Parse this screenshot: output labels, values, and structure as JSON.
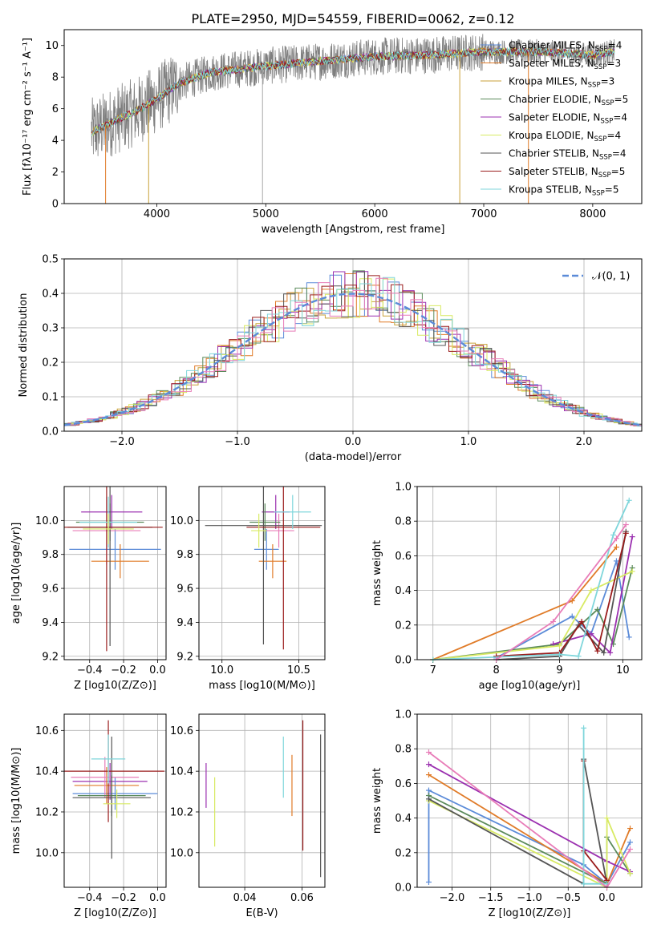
{
  "figure": {
    "title": "PLATE=2950, MJD=54559, FIBERID=0062, z=0.12"
  },
  "colors": {
    "blue": "#5b8bd8",
    "orange": "#e07b28",
    "gold": "#c9a23a",
    "green": "#5a8a5a",
    "purple": "#9b30b0",
    "yellowgreen": "#d8ea63",
    "darkgray": "#555555",
    "darkred": "#9a1c1c",
    "cyan": "#7fd6db",
    "pink": "#e87cb8",
    "olive": "#9aa23a",
    "gray": "#7f7f7f"
  },
  "chart_data": [
    {
      "type": "line",
      "xlabel": "wavelength [Angstrom, rest frame]",
      "ylabel": "Flux [fλ10⁻¹⁷ erg cm⁻² s⁻¹ A⁻¹]",
      "xlim": [
        3150,
        8450
      ],
      "ylim": [
        0,
        11
      ],
      "xticks": [
        4000,
        5000,
        6000,
        7000,
        8000
      ],
      "yticks": [
        0,
        2,
        4,
        6,
        8,
        10
      ],
      "grid": false,
      "legend_position": "top-right",
      "continuum": {
        "x": [
          3400,
          3600,
          3800,
          4000,
          4200,
          4500,
          5000,
          5500,
          6000,
          6500,
          7000,
          7500,
          8000,
          8200
        ],
        "y": [
          4.5,
          5.2,
          5.8,
          6.6,
          7.6,
          8.3,
          8.7,
          9.0,
          9.3,
          9.4,
          9.6,
          9.6,
          9.4,
          9.6
        ]
      },
      "series": [
        {
          "name": "Chabrier MILES, N_SSP=4",
          "color": "#5b8bd8"
        },
        {
          "name": "Salpeter MILES, N_SSP=3",
          "color": "#e07b28"
        },
        {
          "name": "Kroupa MILES, N_SSP=3",
          "color": "#c9a23a"
        },
        {
          "name": "Chabrier ELODIE, N_SSP=5",
          "color": "#5a8a5a"
        },
        {
          "name": "Salpeter ELODIE, N_SSP=4",
          "color": "#9b30b0"
        },
        {
          "name": "Kroupa ELODIE, N_SSP=4",
          "color": "#d8ea63"
        },
        {
          "name": "Chabrier STELIB, N_SSP=4",
          "color": "#555555"
        },
        {
          "name": "Salpeter STELIB, N_SSP=5",
          "color": "#9a1c1c"
        },
        {
          "name": "Kroupa STELIB, N_SSP=5",
          "color": "#7fd6db"
        }
      ],
      "legend": [
        {
          "name": "Chabrier MILES, N",
          "sub": "SSP",
          "suffix": "=4",
          "color": "#5b8bd8"
        },
        {
          "name": "Salpeter MILES, N",
          "sub": "SSP",
          "suffix": "=3",
          "color": "#e07b28"
        },
        {
          "name": "Kroupa MILES, N",
          "sub": "SSP",
          "suffix": "=3",
          "color": "#c9a23a"
        },
        {
          "name": "Chabrier ELODIE, N",
          "sub": "SSP",
          "suffix": "=5",
          "color": "#5a8a5a"
        },
        {
          "name": "Salpeter ELODIE, N",
          "sub": "SSP",
          "suffix": "=4",
          "color": "#9b30b0"
        },
        {
          "name": "Kroupa ELODIE, N",
          "sub": "SSP",
          "suffix": "=4",
          "color": "#d8ea63"
        },
        {
          "name": "Chabrier STELIB, N",
          "sub": "SSP",
          "suffix": "=4",
          "color": "#555555"
        },
        {
          "name": "Salpeter STELIB, N",
          "sub": "SSP",
          "suffix": "=5",
          "color": "#9a1c1c"
        },
        {
          "name": "Kroupa STELIB, N",
          "sub": "SSP",
          "suffix": "=5",
          "color": "#7fd6db"
        }
      ]
    },
    {
      "type": "histogram",
      "xlabel": "(data-model)/error",
      "ylabel": "Normed distribution",
      "xlim": [
        -2.5,
        2.5
      ],
      "ylim": [
        0,
        0.5
      ],
      "xticks": [
        -2,
        -1,
        0,
        1,
        2
      ],
      "yticks": [
        0.0,
        0.1,
        0.2,
        0.3,
        0.4,
        0.5
      ],
      "grid": true,
      "legend_position": "top-right",
      "gaussian_label": "𝒩(0, 1)",
      "gaussian_color": "#5b8bd8",
      "bin_width": 0.1
    },
    {
      "type": "scatter",
      "xlabel": "Z [log10(Z/Z⊙)]",
      "ylabel": "age  [log10(age/yr)]",
      "xlim": [
        -0.55,
        0.05
      ],
      "ylim": [
        9.18,
        10.2
      ],
      "xticks": [
        -0.4,
        -0.2,
        0.0
      ],
      "yticks": [
        9.2,
        9.4,
        9.6,
        9.8,
        10.0
      ],
      "grid": true,
      "points": [
        {
          "color": "#9b30b0",
          "x": -0.27,
          "y": 10.05,
          "xerr": 0.18,
          "yerr": 0.1
        },
        {
          "color": "#5b8bd8",
          "x": -0.25,
          "y": 9.83,
          "xerr": 0.27,
          "yerr": 0.12
        },
        {
          "color": "#e07b28",
          "x": -0.22,
          "y": 9.76,
          "xerr": 0.17,
          "yerr": 0.1
        },
        {
          "color": "#e87cb8",
          "x": -0.3,
          "y": 9.94,
          "xerr": 0.2,
          "yerr": 0.2
        },
        {
          "color": "#5a8a5a",
          "x": -0.28,
          "y": 9.99,
          "xerr": 0.2,
          "yerr": 0.11
        },
        {
          "color": "#555555",
          "x": -0.28,
          "y": 9.96,
          "xerr": 0.25,
          "yerr": 0.7
        },
        {
          "color": "#9a1c1c",
          "x": -0.3,
          "y": 9.96,
          "xerr": 0.33,
          "yerr": 0.73
        },
        {
          "color": "#7fd6db",
          "x": -0.29,
          "y": 9.99,
          "xerr": 0.17,
          "yerr": 0.15
        },
        {
          "color": "#d8ea63",
          "x": -0.29,
          "y": 9.95,
          "xerr": 0.15,
          "yerr": 0.09
        }
      ]
    },
    {
      "type": "scatter",
      "xlabel": "mass [log10(M/M⊙)]",
      "ylabel": "",
      "xlim": [
        9.85,
        10.67
      ],
      "ylim": [
        9.18,
        10.2
      ],
      "xticks": [
        10.0,
        10.5
      ],
      "yticks": [
        9.2,
        9.4,
        9.6,
        9.8,
        10.0
      ],
      "grid": true,
      "points": [
        {
          "color": "#9b30b0",
          "x": 10.35,
          "y": 10.05,
          "xerr": 0.09,
          "yerr": 0.1
        },
        {
          "color": "#5b8bd8",
          "x": 10.29,
          "y": 9.83,
          "xerr": 0.08,
          "yerr": 0.12
        },
        {
          "color": "#e07b28",
          "x": 10.33,
          "y": 9.76,
          "xerr": 0.09,
          "yerr": 0.1
        },
        {
          "color": "#e87cb8",
          "x": 10.37,
          "y": 9.94,
          "xerr": 0.1,
          "yerr": 0.1
        },
        {
          "color": "#5a8a5a",
          "x": 10.28,
          "y": 9.99,
          "xerr": 0.1,
          "yerr": 0.11
        },
        {
          "color": "#555555",
          "x": 10.27,
          "y": 9.97,
          "xerr": 0.38,
          "yerr": 0.7
        },
        {
          "color": "#9a1c1c",
          "x": 10.4,
          "y": 9.96,
          "xerr": 0.24,
          "yerr": 0.72
        },
        {
          "color": "#7fd6db",
          "x": 10.46,
          "y": 10.05,
          "xerr": 0.12,
          "yerr": 0.1
        },
        {
          "color": "#d8ea63",
          "x": 10.24,
          "y": 9.94,
          "xerr": 0.05,
          "yerr": 0.1
        }
      ]
    },
    {
      "type": "line",
      "xlabel": "age  [log10(age/yr)]",
      "ylabel": "mass weight",
      "xlim": [
        6.75,
        10.3
      ],
      "ylim": [
        0,
        1
      ],
      "xticks": [
        7,
        8,
        9,
        10
      ],
      "yticks": [
        0.0,
        0.2,
        0.4,
        0.6,
        0.8,
        1.0
      ],
      "grid": true,
      "series": [
        {
          "name": "Chabrier MILES",
          "color": "#5b8bd8",
          "x": [
            8.0,
            9.2,
            9.5,
            9.9,
            10.1
          ],
          "y": [
            0.01,
            0.25,
            0.15,
            0.57,
            0.13
          ]
        },
        {
          "name": "Salpeter MILES",
          "color": "#e07b28",
          "x": [
            7.0,
            9.2,
            9.9
          ],
          "y": [
            0.0,
            0.34,
            0.65
          ]
        },
        {
          "name": "Chabrier ELODIE",
          "color": "#5a8a5a",
          "x": [
            7.0,
            9.0,
            9.6,
            9.85,
            10.15
          ],
          "y": [
            0.0,
            0.09,
            0.29,
            0.09,
            0.53
          ]
        },
        {
          "name": "Salpeter ELODIE",
          "color": "#9b30b0",
          "x": [
            8.9,
            9.5,
            9.8,
            10.15
          ],
          "y": [
            0.09,
            0.15,
            0.04,
            0.71
          ]
        },
        {
          "name": "Kroupa ELODIE",
          "color": "#d8ea63",
          "x": [
            7.0,
            9.0,
            9.5,
            10.15
          ],
          "y": [
            0.0,
            0.08,
            0.4,
            0.51
          ]
        },
        {
          "name": "Chabrier STELIB",
          "color": "#555555",
          "x": [
            8.0,
            9.0,
            9.3,
            9.7,
            10.05
          ],
          "y": [
            0.0,
            0.02,
            0.2,
            0.04,
            0.74
          ]
        },
        {
          "name": "Salpeter STELIB",
          "color": "#9a1c1c",
          "x": [
            8.0,
            9.0,
            9.35,
            9.6,
            10.05
          ],
          "y": [
            0.02,
            0.04,
            0.22,
            0.05,
            0.73
          ]
        },
        {
          "name": "Kroupa STELIB",
          "color": "#7fd6db",
          "x": [
            7.0,
            9.0,
            9.3,
            9.85,
            10.1
          ],
          "y": [
            0.0,
            0.03,
            0.02,
            0.72,
            0.92
          ]
        },
        {
          "name": "pink",
          "color": "#e87cb8",
          "x": [
            8.0,
            8.9,
            9.9,
            10.05
          ],
          "y": [
            0.0,
            0.22,
            0.7,
            0.78
          ]
        }
      ]
    },
    {
      "type": "scatter",
      "xlabel": "Z [log10(Z/Z⊙)]",
      "ylabel": "mass [log10(M/M⊙)]",
      "xlim": [
        -0.55,
        0.05
      ],
      "ylim": [
        9.83,
        10.68
      ],
      "xticks": [
        -0.4,
        -0.2,
        0.0
      ],
      "yticks": [
        10.0,
        10.2,
        10.4,
        10.6
      ],
      "grid": true,
      "points": [
        {
          "color": "#9b30b0",
          "x": -0.28,
          "y": 10.35,
          "xerr": 0.22,
          "yerr": 0.09
        },
        {
          "color": "#5b8bd8",
          "x": -0.25,
          "y": 10.29,
          "xerr": 0.25,
          "yerr": 0.08
        },
        {
          "color": "#e07b28",
          "x": -0.3,
          "y": 10.33,
          "xerr": 0.19,
          "yerr": 0.09
        },
        {
          "color": "#e87cb8",
          "x": -0.31,
          "y": 10.37,
          "xerr": 0.2,
          "yerr": 0.1
        },
        {
          "color": "#5a8a5a",
          "x": -0.27,
          "y": 10.28,
          "xerr": 0.2,
          "yerr": 0.1
        },
        {
          "color": "#555555",
          "x": -0.27,
          "y": 10.27,
          "xerr": 0.23,
          "yerr": 0.3
        },
        {
          "color": "#9a1c1c",
          "x": -0.29,
          "y": 10.4,
          "xerr": 0.33,
          "yerr": 0.25
        },
        {
          "color": "#7fd6db",
          "x": -0.29,
          "y": 10.46,
          "xerr": 0.1,
          "yerr": 0.12
        },
        {
          "color": "#d8ea63",
          "x": -0.24,
          "y": 10.24,
          "xerr": 0.08,
          "yerr": 0.07
        }
      ]
    },
    {
      "type": "scatter",
      "xlabel": "E(B-V)",
      "ylabel": "",
      "xlim": [
        0.024,
        0.068
      ],
      "ylim": [
        9.83,
        10.68
      ],
      "xticks": [
        0.04,
        0.06
      ],
      "yticks": [
        10.0,
        10.2,
        10.4,
        10.6
      ],
      "grid": true,
      "points": [
        {
          "color": "#9b30b0",
          "x": 0.0265,
          "y": 10.33,
          "xerr": 0,
          "yerr": 0.11
        },
        {
          "color": "#d8ea63",
          "x": 0.0295,
          "y": 10.2,
          "xerr": 0,
          "yerr": 0.17
        },
        {
          "color": "#7fd6db",
          "x": 0.0535,
          "y": 10.42,
          "xerr": 0,
          "yerr": 0.15
        },
        {
          "color": "#e07b28",
          "x": 0.0565,
          "y": 10.33,
          "xerr": 0,
          "yerr": 0.15
        },
        {
          "color": "#9a1c1c",
          "x": 0.0603,
          "y": 10.33,
          "xerr": 0,
          "yerr": 0.32
        },
        {
          "color": "#555555",
          "x": 0.0665,
          "y": 10.23,
          "xerr": 0,
          "yerr": 0.35
        }
      ]
    },
    {
      "type": "line",
      "xlabel": "Z [log10(Z/Z⊙)]",
      "ylabel": "mass weight",
      "xlim": [
        -2.45,
        0.45
      ],
      "ylim": [
        0,
        1
      ],
      "xticks": [
        -2.0,
        -1.5,
        -1.0,
        -0.5,
        0.0
      ],
      "yticks": [
        0.0,
        0.2,
        0.4,
        0.6,
        0.8,
        1.0
      ],
      "grid": true,
      "series": [
        {
          "name": "blue",
          "color": "#5b8bd8",
          "x": [
            -2.3,
            -2.3,
            -0.3,
            0.0,
            0.3
          ],
          "y": [
            0.03,
            0.56,
            0.13,
            0.02,
            0.26
          ]
        },
        {
          "name": "orange",
          "color": "#e07b28",
          "x": [
            -2.3,
            0.0,
            0.3
          ],
          "y": [
            0.65,
            0.02,
            0.34
          ]
        },
        {
          "name": "green",
          "color": "#5a8a5a",
          "x": [
            -2.3,
            0.0,
            0.0,
            0.3
          ],
          "y": [
            0.53,
            0.02,
            0.29,
            0.08
          ]
        },
        {
          "name": "purple",
          "color": "#9b30b0",
          "x": [
            -2.3,
            0.0,
            0.3
          ],
          "y": [
            0.71,
            0.15,
            0.09
          ]
        },
        {
          "name": "yellowgreen",
          "color": "#d8ea63",
          "x": [
            -2.3,
            0.0,
            0.0,
            0.3
          ],
          "y": [
            0.5,
            0.0,
            0.4,
            0.08
          ]
        },
        {
          "name": "darkgray",
          "color": "#555555",
          "x": [
            -2.3,
            -0.3,
            -0.3,
            0.0
          ],
          "y": [
            0.51,
            0.02,
            0.74,
            0.02
          ]
        },
        {
          "name": "darkred",
          "color": "#9a1c1c",
          "x": [
            -0.3,
            -0.3,
            0.0
          ],
          "y": [
            0.73,
            0.21,
            0.04
          ]
        },
        {
          "name": "cyan",
          "color": "#7fd6db",
          "x": [
            -0.3,
            -0.3,
            0.0
          ],
          "y": [
            0.92,
            0.02,
            0.02
          ]
        },
        {
          "name": "pink",
          "color": "#e87cb8",
          "x": [
            -2.3,
            0.0,
            0.3
          ],
          "y": [
            0.78,
            0.0,
            0.22
          ]
        }
      ]
    }
  ]
}
